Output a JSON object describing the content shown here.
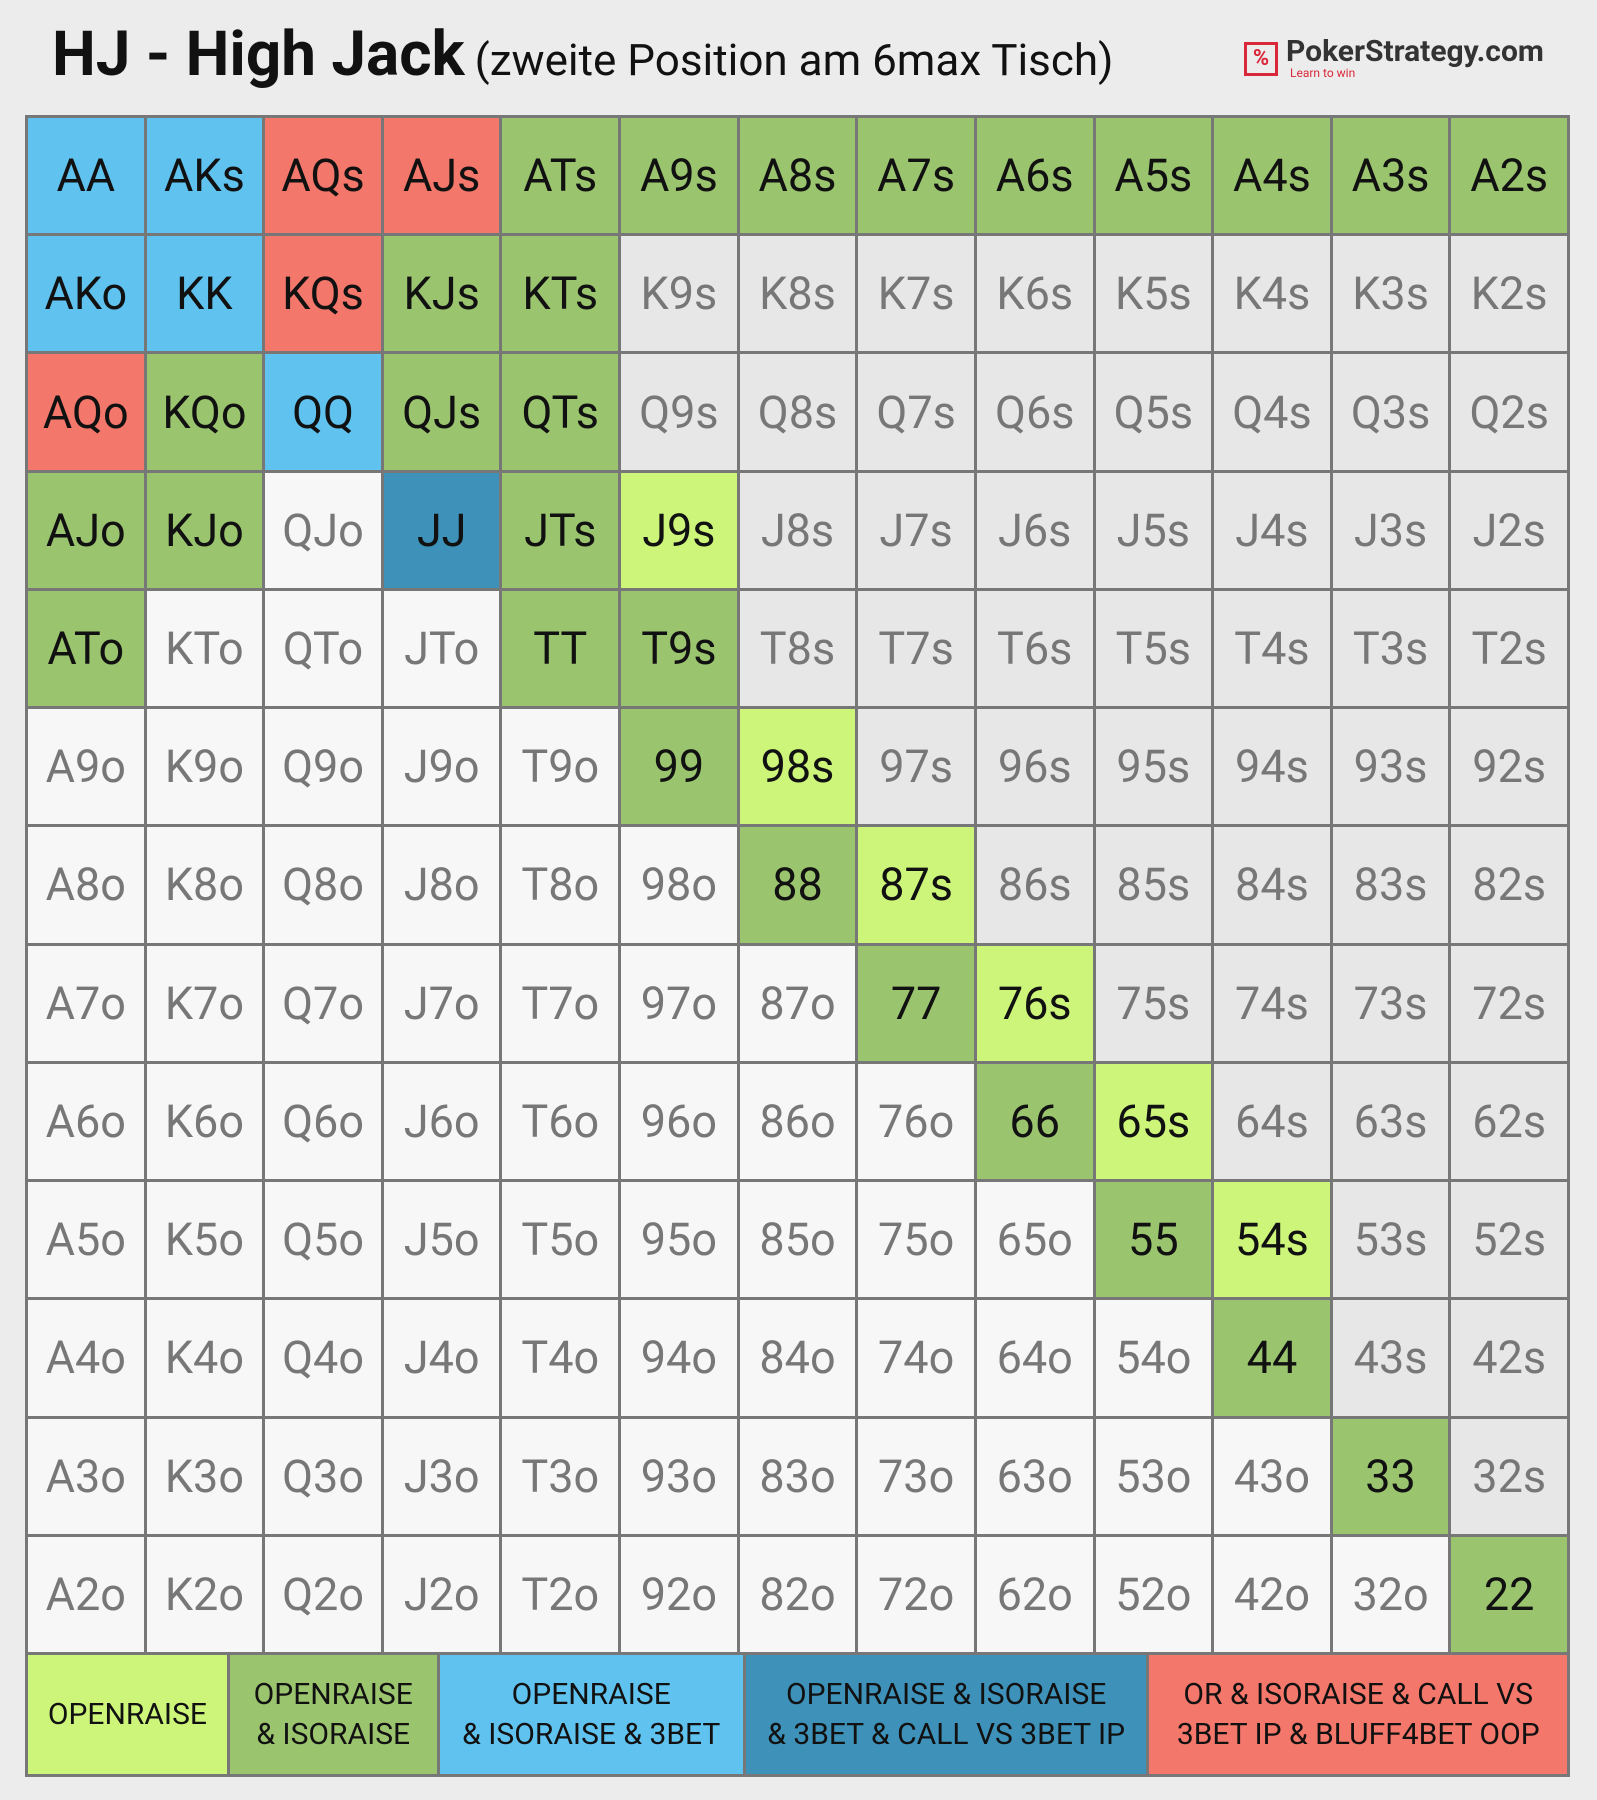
{
  "header": {
    "title": "HJ - High Jack",
    "subtitle": "(zweite Position am 6max Tisch)",
    "logo": "PokerStrategy.com",
    "logo_tagline": "Learn to win"
  },
  "grid": {
    "rows": [
      [
        {
          "label": "AA",
          "color": "#60c2ef"
        },
        {
          "label": "AKs",
          "color": "#60c2ef"
        },
        {
          "label": "AQs",
          "color": "#f3776a"
        },
        {
          "label": "AJs",
          "color": "#f3776a"
        },
        {
          "label": "ATs",
          "color": "#9bc46e"
        },
        {
          "label": "A9s",
          "color": "#9bc46e"
        },
        {
          "label": "A8s",
          "color": "#9bc46e"
        },
        {
          "label": "A7s",
          "color": "#9bc46e"
        },
        {
          "label": "A6s",
          "color": "#9bc46e"
        },
        {
          "label": "A5s",
          "color": "#9bc46e"
        },
        {
          "label": "A4s",
          "color": "#9bc46e"
        },
        {
          "label": "A3s",
          "color": "#9bc46e"
        },
        {
          "label": "A2s",
          "color": "#9bc46e"
        }
      ],
      [
        {
          "label": "AKo",
          "color": "#60c2ef"
        },
        {
          "label": "KK",
          "color": "#60c2ef"
        },
        {
          "label": "KQs",
          "color": "#f3776a"
        },
        {
          "label": "KJs",
          "color": "#9bc46e"
        },
        {
          "label": "KTs",
          "color": "#9bc46e"
        },
        {
          "label": "K9s",
          "color": "#e7e7e7"
        },
        {
          "label": "K8s",
          "color": "#e7e7e7"
        },
        {
          "label": "K7s",
          "color": "#e7e7e7"
        },
        {
          "label": "K6s",
          "color": "#e7e7e7"
        },
        {
          "label": "K5s",
          "color": "#e7e7e7"
        },
        {
          "label": "K4s",
          "color": "#e7e7e7"
        },
        {
          "label": "K3s",
          "color": "#e7e7e7"
        },
        {
          "label": "K2s",
          "color": "#e7e7e7"
        }
      ],
      [
        {
          "label": "AQo",
          "color": "#f3776a"
        },
        {
          "label": "KQo",
          "color": "#9bc46e"
        },
        {
          "label": "QQ",
          "color": "#60c2ef"
        },
        {
          "label": "QJs",
          "color": "#9bc46e"
        },
        {
          "label": "QTs",
          "color": "#9bc46e"
        },
        {
          "label": "Q9s",
          "color": "#e7e7e7"
        },
        {
          "label": "Q8s",
          "color": "#e7e7e7"
        },
        {
          "label": "Q7s",
          "color": "#e7e7e7"
        },
        {
          "label": "Q6s",
          "color": "#e7e7e7"
        },
        {
          "label": "Q5s",
          "color": "#e7e7e7"
        },
        {
          "label": "Q4s",
          "color": "#e7e7e7"
        },
        {
          "label": "Q3s",
          "color": "#e7e7e7"
        },
        {
          "label": "Q2s",
          "color": "#e7e7e7"
        }
      ],
      [
        {
          "label": "AJo",
          "color": "#9bc46e"
        },
        {
          "label": "KJo",
          "color": "#9bc46e"
        },
        {
          "label": "QJo",
          "color": "#f7f7f7"
        },
        {
          "label": "JJ",
          "color": "#3e91b8"
        },
        {
          "label": "JTs",
          "color": "#9bc46e"
        },
        {
          "label": "J9s",
          "color": "#ccf57a"
        },
        {
          "label": "J8s",
          "color": "#e7e7e7"
        },
        {
          "label": "J7s",
          "color": "#e7e7e7"
        },
        {
          "label": "J6s",
          "color": "#e7e7e7"
        },
        {
          "label": "J5s",
          "color": "#e7e7e7"
        },
        {
          "label": "J4s",
          "color": "#e7e7e7"
        },
        {
          "label": "J3s",
          "color": "#e7e7e7"
        },
        {
          "label": "J2s",
          "color": "#e7e7e7"
        }
      ],
      [
        {
          "label": "ATo",
          "color": "#9bc46e"
        },
        {
          "label": "KTo",
          "color": "#f7f7f7"
        },
        {
          "label": "QTo",
          "color": "#f7f7f7"
        },
        {
          "label": "JTo",
          "color": "#f7f7f7"
        },
        {
          "label": "TT",
          "color": "#9bc46e"
        },
        {
          "label": "T9s",
          "color": "#9bc46e"
        },
        {
          "label": "T8s",
          "color": "#e7e7e7"
        },
        {
          "label": "T7s",
          "color": "#e7e7e7"
        },
        {
          "label": "T6s",
          "color": "#e7e7e7"
        },
        {
          "label": "T5s",
          "color": "#e7e7e7"
        },
        {
          "label": "T4s",
          "color": "#e7e7e7"
        },
        {
          "label": "T3s",
          "color": "#e7e7e7"
        },
        {
          "label": "T2s",
          "color": "#e7e7e7"
        }
      ],
      [
        {
          "label": "A9o",
          "color": "#f7f7f7"
        },
        {
          "label": "K9o",
          "color": "#f7f7f7"
        },
        {
          "label": "Q9o",
          "color": "#f7f7f7"
        },
        {
          "label": "J9o",
          "color": "#f7f7f7"
        },
        {
          "label": "T9o",
          "color": "#f7f7f7"
        },
        {
          "label": "99",
          "color": "#9bc46e"
        },
        {
          "label": "98s",
          "color": "#ccf57a"
        },
        {
          "label": "97s",
          "color": "#e7e7e7"
        },
        {
          "label": "96s",
          "color": "#e7e7e7"
        },
        {
          "label": "95s",
          "color": "#e7e7e7"
        },
        {
          "label": "94s",
          "color": "#e7e7e7"
        },
        {
          "label": "93s",
          "color": "#e7e7e7"
        },
        {
          "label": "92s",
          "color": "#e7e7e7"
        }
      ],
      [
        {
          "label": "A8o",
          "color": "#f7f7f7"
        },
        {
          "label": "K8o",
          "color": "#f7f7f7"
        },
        {
          "label": "Q8o",
          "color": "#f7f7f7"
        },
        {
          "label": "J8o",
          "color": "#f7f7f7"
        },
        {
          "label": "T8o",
          "color": "#f7f7f7"
        },
        {
          "label": "98o",
          "color": "#f7f7f7"
        },
        {
          "label": "88",
          "color": "#9bc46e"
        },
        {
          "label": "87s",
          "color": "#ccf57a"
        },
        {
          "label": "86s",
          "color": "#e7e7e7"
        },
        {
          "label": "85s",
          "color": "#e7e7e7"
        },
        {
          "label": "84s",
          "color": "#e7e7e7"
        },
        {
          "label": "83s",
          "color": "#e7e7e7"
        },
        {
          "label": "82s",
          "color": "#e7e7e7"
        }
      ],
      [
        {
          "label": "A7o",
          "color": "#f7f7f7"
        },
        {
          "label": "K7o",
          "color": "#f7f7f7"
        },
        {
          "label": "Q7o",
          "color": "#f7f7f7"
        },
        {
          "label": "J7o",
          "color": "#f7f7f7"
        },
        {
          "label": "T7o",
          "color": "#f7f7f7"
        },
        {
          "label": "97o",
          "color": "#f7f7f7"
        },
        {
          "label": "87o",
          "color": "#f7f7f7"
        },
        {
          "label": "77",
          "color": "#9bc46e"
        },
        {
          "label": "76s",
          "color": "#ccf57a"
        },
        {
          "label": "75s",
          "color": "#e7e7e7"
        },
        {
          "label": "74s",
          "color": "#e7e7e7"
        },
        {
          "label": "73s",
          "color": "#e7e7e7"
        },
        {
          "label": "72s",
          "color": "#e7e7e7"
        }
      ],
      [
        {
          "label": "A6o",
          "color": "#f7f7f7"
        },
        {
          "label": "K6o",
          "color": "#f7f7f7"
        },
        {
          "label": "Q6o",
          "color": "#f7f7f7"
        },
        {
          "label": "J6o",
          "color": "#f7f7f7"
        },
        {
          "label": "T6o",
          "color": "#f7f7f7"
        },
        {
          "label": "96o",
          "color": "#f7f7f7"
        },
        {
          "label": "86o",
          "color": "#f7f7f7"
        },
        {
          "label": "76o",
          "color": "#f7f7f7"
        },
        {
          "label": "66",
          "color": "#9bc46e"
        },
        {
          "label": "65s",
          "color": "#ccf57a"
        },
        {
          "label": "64s",
          "color": "#e7e7e7"
        },
        {
          "label": "63s",
          "color": "#e7e7e7"
        },
        {
          "label": "62s",
          "color": "#e7e7e7"
        }
      ],
      [
        {
          "label": "A5o",
          "color": "#f7f7f7"
        },
        {
          "label": "K5o",
          "color": "#f7f7f7"
        },
        {
          "label": "Q5o",
          "color": "#f7f7f7"
        },
        {
          "label": "J5o",
          "color": "#f7f7f7"
        },
        {
          "label": "T5o",
          "color": "#f7f7f7"
        },
        {
          "label": "95o",
          "color": "#f7f7f7"
        },
        {
          "label": "85o",
          "color": "#f7f7f7"
        },
        {
          "label": "75o",
          "color": "#f7f7f7"
        },
        {
          "label": "65o",
          "color": "#f7f7f7"
        },
        {
          "label": "55",
          "color": "#9bc46e"
        },
        {
          "label": "54s",
          "color": "#ccf57a"
        },
        {
          "label": "53s",
          "color": "#e7e7e7"
        },
        {
          "label": "52s",
          "color": "#e7e7e7"
        }
      ],
      [
        {
          "label": "A4o",
          "color": "#f7f7f7"
        },
        {
          "label": "K4o",
          "color": "#f7f7f7"
        },
        {
          "label": "Q4o",
          "color": "#f7f7f7"
        },
        {
          "label": "J4o",
          "color": "#f7f7f7"
        },
        {
          "label": "T4o",
          "color": "#f7f7f7"
        },
        {
          "label": "94o",
          "color": "#f7f7f7"
        },
        {
          "label": "84o",
          "color": "#f7f7f7"
        },
        {
          "label": "74o",
          "color": "#f7f7f7"
        },
        {
          "label": "64o",
          "color": "#f7f7f7"
        },
        {
          "label": "54o",
          "color": "#f7f7f7"
        },
        {
          "label": "44",
          "color": "#9bc46e"
        },
        {
          "label": "43s",
          "color": "#e7e7e7"
        },
        {
          "label": "42s",
          "color": "#e7e7e7"
        }
      ],
      [
        {
          "label": "A3o",
          "color": "#f7f7f7"
        },
        {
          "label": "K3o",
          "color": "#f7f7f7"
        },
        {
          "label": "Q3o",
          "color": "#f7f7f7"
        },
        {
          "label": "J3o",
          "color": "#f7f7f7"
        },
        {
          "label": "T3o",
          "color": "#f7f7f7"
        },
        {
          "label": "93o",
          "color": "#f7f7f7"
        },
        {
          "label": "83o",
          "color": "#f7f7f7"
        },
        {
          "label": "73o",
          "color": "#f7f7f7"
        },
        {
          "label": "63o",
          "color": "#f7f7f7"
        },
        {
          "label": "53o",
          "color": "#f7f7f7"
        },
        {
          "label": "43o",
          "color": "#f7f7f7"
        },
        {
          "label": "33",
          "color": "#9bc46e"
        },
        {
          "label": "32s",
          "color": "#e7e7e7"
        }
      ],
      [
        {
          "label": "A2o",
          "color": "#f7f7f7"
        },
        {
          "label": "K2o",
          "color": "#f7f7f7"
        },
        {
          "label": "Q2o",
          "color": "#f7f7f7"
        },
        {
          "label": "J2o",
          "color": "#f7f7f7"
        },
        {
          "label": "T2o",
          "color": "#f7f7f7"
        },
        {
          "label": "92o",
          "color": "#f7f7f7"
        },
        {
          "label": "82o",
          "color": "#f7f7f7"
        },
        {
          "label": "72o",
          "color": "#f7f7f7"
        },
        {
          "label": "62o",
          "color": "#f7f7f7"
        },
        {
          "label": "52o",
          "color": "#f7f7f7"
        },
        {
          "label": "42o",
          "color": "#f7f7f7"
        },
        {
          "label": "32o",
          "color": "#f7f7f7"
        },
        {
          "label": "22",
          "color": "#9bc46e"
        }
      ]
    ]
  },
  "legend": [
    {
      "lines": [
        "OPENRAISE"
      ],
      "color": "#ccf57a"
    },
    {
      "lines": [
        "OPENRAISE",
        "& ISORAISE"
      ],
      "color": "#9bc46e"
    },
    {
      "lines": [
        "OPENRAISE",
        "& ISORAISE & 3BET"
      ],
      "color": "#60c2ef"
    },
    {
      "lines": [
        "OPENRAISE & ISORAISE",
        "& 3BET & CALL VS 3BET IP"
      ],
      "color": "#3e91b8"
    },
    {
      "lines": [
        "OR & ISORAISE & CALL VS",
        "3BET IP & BLUFF4BET OOP"
      ],
      "color": "#f3776a"
    }
  ]
}
